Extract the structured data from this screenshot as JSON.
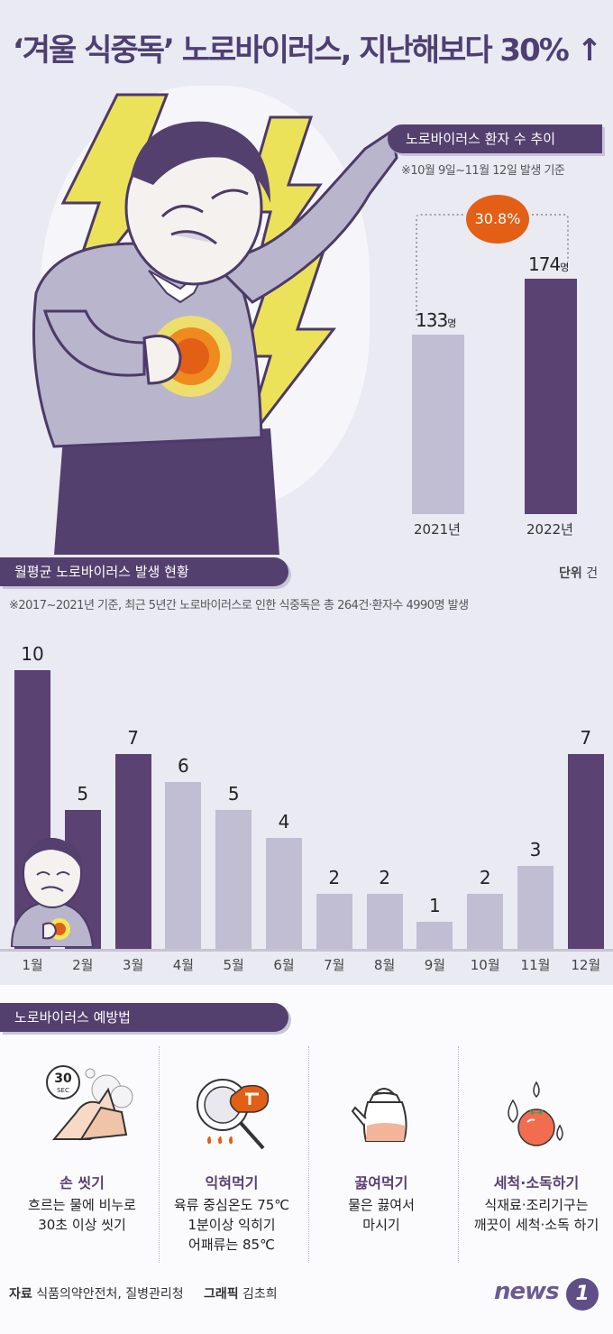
{
  "title": "‘겨울 식중독’ 노로바이러스, 지난해보다 30% ↑",
  "trend": {
    "header": "노로바이러스 환자 수 추이",
    "note": "※10월 9일~11월 12일 발생 기준",
    "increase": "30.8%",
    "unit_suffix": "명",
    "bars": [
      {
        "year": "2021년",
        "value": 133,
        "display": "133"
      },
      {
        "year": "2022년",
        "value": 174,
        "display": "174"
      }
    ],
    "colors": {
      "prev": "#c1bdd3",
      "curr": "#5a4272"
    }
  },
  "monthly": {
    "header": "월평균 노로바이러스 발생 현황",
    "unit_label": "단위",
    "unit_value": "건",
    "note": "※2017~2021년 기준, 최근 5년간 노로바이러스로 인한 식중독은 총 264건·환자수 4990명 발생",
    "colors": {
      "winter": "#5a4272",
      "other": "#c1bdd3"
    }
  },
  "chart_data": [
    {
      "type": "bar",
      "categories": [
        "2021년",
        "2022년"
      ],
      "values": [
        133,
        174
      ],
      "title": "노로바이러스 환자 수 추이",
      "unit": "명",
      "annotation": "30.8%"
    },
    {
      "type": "bar",
      "categories": [
        "1월",
        "2월",
        "3월",
        "4월",
        "5월",
        "6월",
        "7월",
        "8월",
        "9월",
        "10월",
        "11월",
        "12월"
      ],
      "values": [
        10,
        5,
        7,
        6,
        5,
        4,
        2,
        2,
        1,
        2,
        3,
        7
      ],
      "highlight": [
        true,
        true,
        true,
        false,
        false,
        false,
        false,
        false,
        false,
        false,
        false,
        true
      ],
      "title": "월평균 노로바이러스 발생 현황",
      "unit": "건",
      "ylim": [
        0,
        10
      ]
    }
  ],
  "prevention": {
    "header": "노로바이러스 예방법",
    "tips": [
      {
        "icon": "handwash-icon",
        "title": "손 씻기",
        "lines": [
          "흐르는 물에 비누로",
          "30초 이상 씻기"
        ],
        "badge": "30",
        "badge_sub": "SEC"
      },
      {
        "icon": "cooking-pan-icon",
        "title": "익혀먹기",
        "lines": [
          "육류 중심온도 75℃",
          "1분이상 익히기",
          "어패류는 85℃"
        ]
      },
      {
        "icon": "kettle-icon",
        "title": "끓여먹기",
        "lines": [
          "물은 끓여서",
          "마시기"
        ]
      },
      {
        "icon": "washed-fruit-icon",
        "title": "세척·소독하기",
        "lines": [
          "식재료·조리기구는",
          "깨끗이 세척·소독 하기"
        ]
      }
    ]
  },
  "footer": {
    "source_label": "자료",
    "source": "식품의약안전처, 질병관리청",
    "graphic_label": "그래픽",
    "graphic": "김초희"
  },
  "logo": {
    "text": "news",
    "num": "1"
  }
}
